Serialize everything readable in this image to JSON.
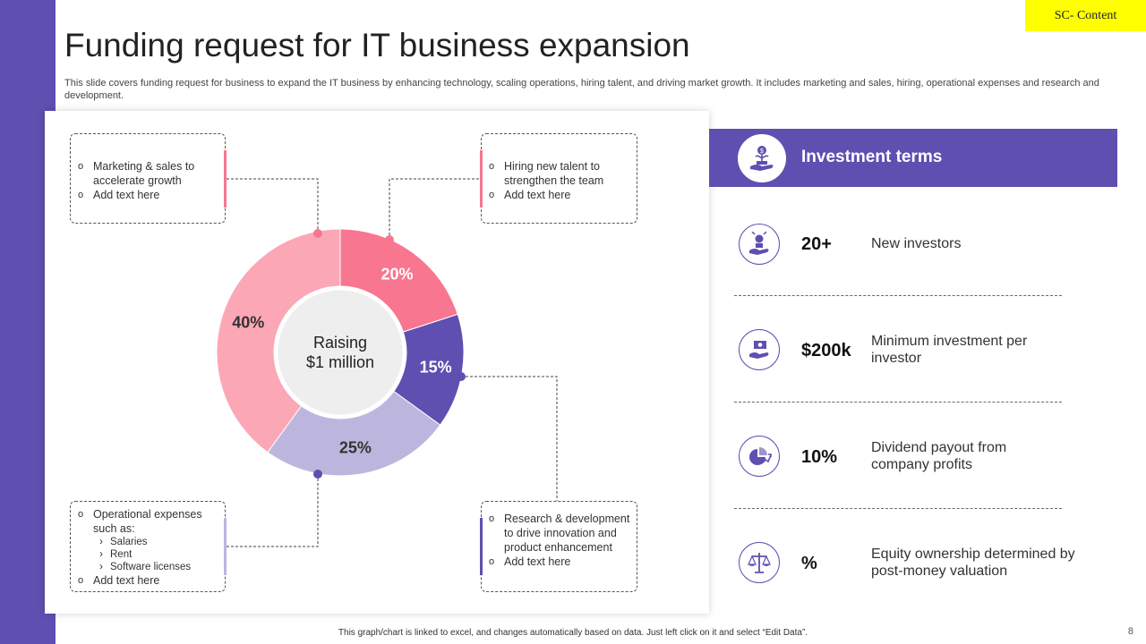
{
  "tag": "SC- Content",
  "title": "Funding request for IT business expansion",
  "description": "This slide covers funding request for business to expand the IT business by enhancing technology, scaling operations, hiring talent, and driving market growth. It includes marketing and sales, hiring, operational expenses and research and development.",
  "chart_data": {
    "type": "pie",
    "variant": "donut",
    "center_label": [
      "Raising",
      "$1 million"
    ],
    "slices": [
      {
        "name": "Hiring new talent",
        "value": 20,
        "label": "20%",
        "color": "#f87690"
      },
      {
        "name": "Research & development",
        "value": 15,
        "label": "15%",
        "color": "#5f4fb0"
      },
      {
        "name": "Operational expenses",
        "value": 25,
        "label": "25%",
        "color": "#bcb6df"
      },
      {
        "name": "Marketing & sales",
        "value": 40,
        "label": "40%",
        "color": "#fba7b6"
      }
    ]
  },
  "callouts": {
    "marketing": {
      "items": [
        "Marketing & sales to accelerate growth",
        "Add text here"
      ],
      "accent": "#f87690"
    },
    "hiring": {
      "items": [
        "Hiring new talent to strengthen the team",
        "Add text here"
      ],
      "accent": "#f87690"
    },
    "operational": {
      "title": "Operational expenses such as:",
      "subitems": [
        "Salaries",
        "Rent",
        "Software licenses"
      ],
      "last": "Add text here",
      "accent": "#bcb6df"
    },
    "research": {
      "items": [
        "Research & development to drive innovation and product enhancement",
        "Add text here"
      ],
      "accent": "#5f4fb0"
    }
  },
  "terms": {
    "header": "Investment terms",
    "header_icon": "investment-plant-icon",
    "rows": [
      {
        "value": "20+",
        "label": "New investors",
        "icon": "investor-hand-icon"
      },
      {
        "value": "$200k",
        "label": "Minimum investment per investor",
        "icon": "money-hand-icon"
      },
      {
        "value": "10%",
        "label": "Dividend payout from company profits",
        "icon": "pie-growth-icon"
      },
      {
        "value": "%",
        "label": "Equity ownership determined by post-money valuation",
        "icon": "balance-scale-icon"
      }
    ]
  },
  "footer": "This graph/chart is linked to excel, and changes automatically based on data. Just left click on it and select “Edit Data”.",
  "page_number": "8",
  "colors": {
    "brand": "#5f4fb0",
    "pink": "#f87690",
    "light_pink": "#fba7b6",
    "lavender": "#bcb6df",
    "tag": "#ffff00"
  }
}
